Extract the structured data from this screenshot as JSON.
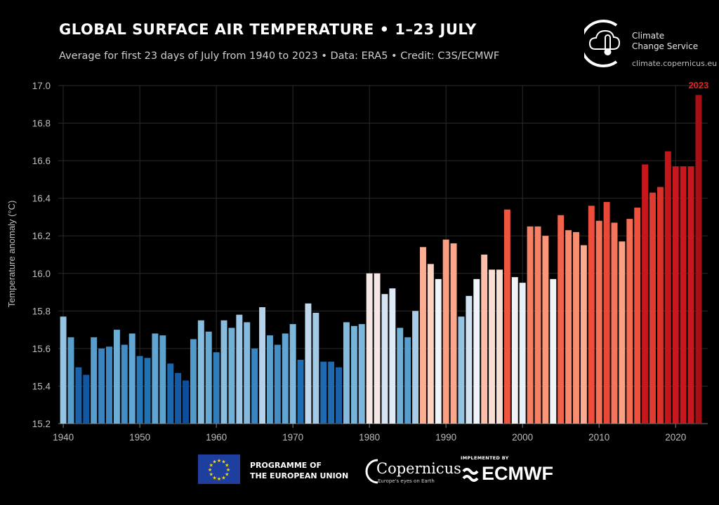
{
  "header": {
    "title": "GLOBAL SURFACE AIR TEMPERATURE • 1–23 JULY",
    "subtitle": "Average for first 23 days of July from 1940 to 2023 • Data: ERA5 • Credit: C3S/ECMWF"
  },
  "logo": {
    "line1": "Climate",
    "line2": "Change Service",
    "url": "climate.copernicus.eu"
  },
  "footer": {
    "eu_line1": "PROGRAMME OF",
    "eu_line2": "THE EUROPEAN UNION",
    "copernicus": "Copernicus",
    "copernicus_tagline": "Europe's eyes on Earth",
    "implemented_by": "IMPLEMENTED BY",
    "ecmwf": "ECMWF"
  },
  "colors": {
    "background": "#000000",
    "grid": "#2b2b2b",
    "highlight": "#e8211e",
    "cold_dark": "#08469c",
    "warm_dark": "#a5121b"
  },
  "chart_data": {
    "type": "bar",
    "title": "GLOBAL SURFACE AIR TEMPERATURE • 1–23 JULY",
    "ylabel": "Temperature anomaly (°C)",
    "xlabel": "",
    "ylim": [
      15.2,
      17.0
    ],
    "yticks": [
      "15.2",
      "15.4",
      "15.6",
      "15.8",
      "16.0",
      "16.2",
      "16.4",
      "16.6",
      "16.8",
      "17.0"
    ],
    "xticks": [
      "1940",
      "1950",
      "1960",
      "1970",
      "1980",
      "1990",
      "2000",
      "2010",
      "2020"
    ],
    "grid": true,
    "highlight_label": "2023",
    "years": [
      1940,
      1941,
      1942,
      1943,
      1944,
      1945,
      1946,
      1947,
      1948,
      1949,
      1950,
      1951,
      1952,
      1953,
      1954,
      1955,
      1956,
      1957,
      1958,
      1959,
      1960,
      1961,
      1962,
      1963,
      1964,
      1965,
      1966,
      1967,
      1968,
      1969,
      1970,
      1971,
      1972,
      1973,
      1974,
      1975,
      1976,
      1977,
      1978,
      1979,
      1980,
      1981,
      1982,
      1983,
      1984,
      1985,
      1986,
      1987,
      1988,
      1989,
      1990,
      1991,
      1992,
      1993,
      1994,
      1995,
      1996,
      1997,
      1998,
      1999,
      2000,
      2001,
      2002,
      2003,
      2004,
      2005,
      2006,
      2007,
      2008,
      2009,
      2010,
      2011,
      2012,
      2013,
      2014,
      2015,
      2016,
      2017,
      2018,
      2019,
      2020,
      2021,
      2022,
      2023
    ],
    "values": [
      15.77,
      15.66,
      15.5,
      15.46,
      15.66,
      15.6,
      15.61,
      15.7,
      15.62,
      15.68,
      15.56,
      15.55,
      15.68,
      15.67,
      15.52,
      15.47,
      15.43,
      15.65,
      15.75,
      15.69,
      15.58,
      15.75,
      15.71,
      15.78,
      15.74,
      15.6,
      15.82,
      15.67,
      15.62,
      15.68,
      15.73,
      15.54,
      15.84,
      15.79,
      15.53,
      15.53,
      15.5,
      15.74,
      15.72,
      15.73,
      16.0,
      16.0,
      15.89,
      15.92,
      15.71,
      15.66,
      15.8,
      16.14,
      16.05,
      15.97,
      16.18,
      16.16,
      15.77,
      15.88,
      15.97,
      16.1,
      16.02,
      16.02,
      16.34,
      15.98,
      15.95,
      16.25,
      16.25,
      16.2,
      15.97,
      16.31,
      16.23,
      16.22,
      16.15,
      16.36,
      16.28,
      16.38,
      16.27,
      16.17,
      16.29,
      16.35,
      16.58,
      16.43,
      16.46,
      16.65,
      16.57,
      16.57,
      16.57,
      16.95
    ]
  }
}
